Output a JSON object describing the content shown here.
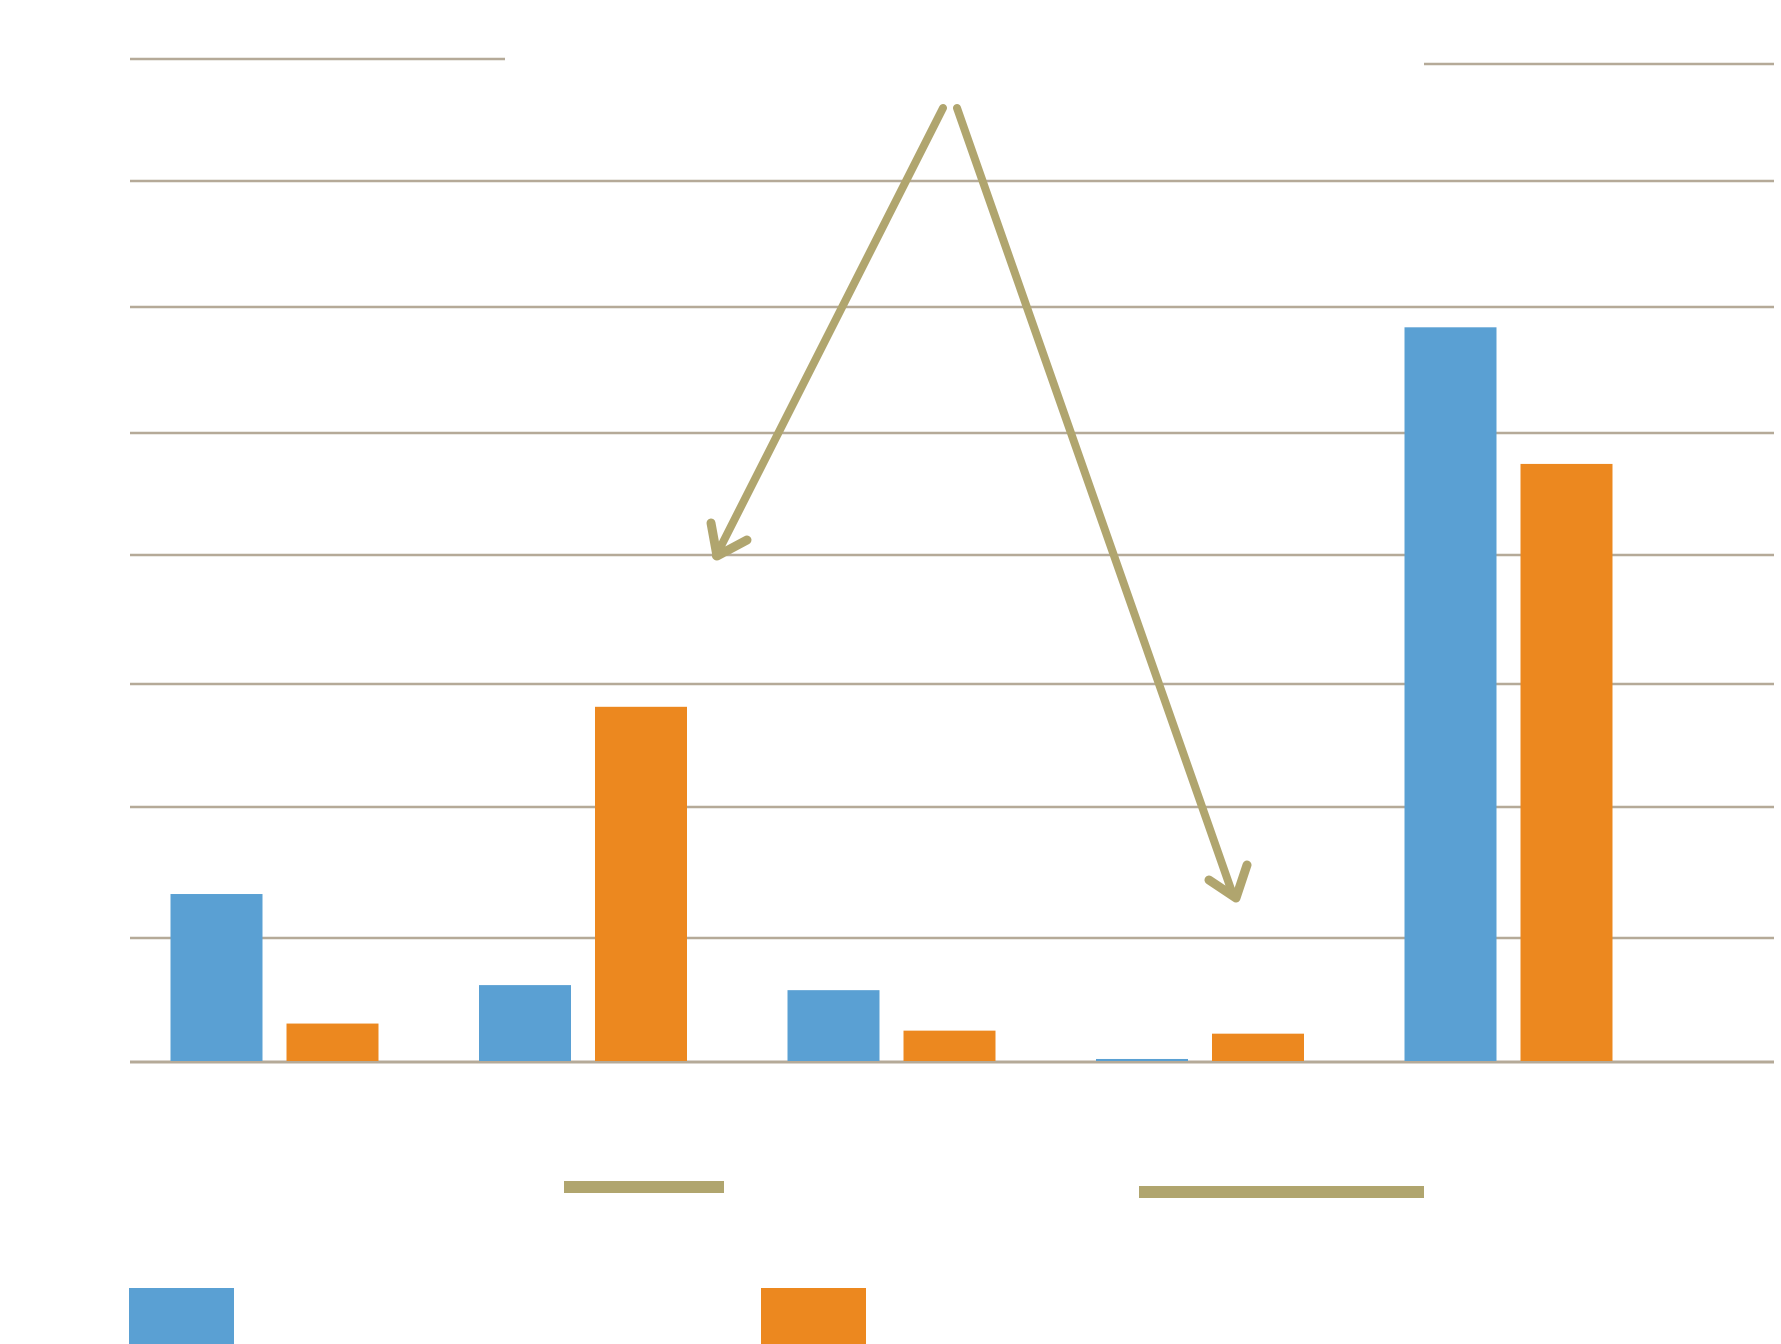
{
  "colors": {
    "series_1": "#5aa0d3",
    "series_2": "#ec881f",
    "gridline": "#b5aa98",
    "annotation": "#b0a56e"
  },
  "chart_data": {
    "type": "bar",
    "title": "",
    "xlabel": "",
    "ylabel": "",
    "categories": [
      "",
      "",
      "",
      "",
      ""
    ],
    "series": [
      {
        "values": [
          1.65,
          0.75,
          0.7,
          0.02,
          7.25
        ]
      },
      {
        "values": [
          0.37,
          3.5,
          0.3,
          0.27,
          5.9
        ]
      }
    ],
    "ylim": [
      0,
      8.4
    ],
    "grid": true,
    "legend": "bottom",
    "annotations": [
      {
        "type": "arrow",
        "from": "top-center",
        "to_category_index": 1,
        "to_value": 4.2
      },
      {
        "type": "arrow",
        "from": "top-center",
        "to_category_index": 3,
        "to_value": 1.3
      }
    ]
  }
}
